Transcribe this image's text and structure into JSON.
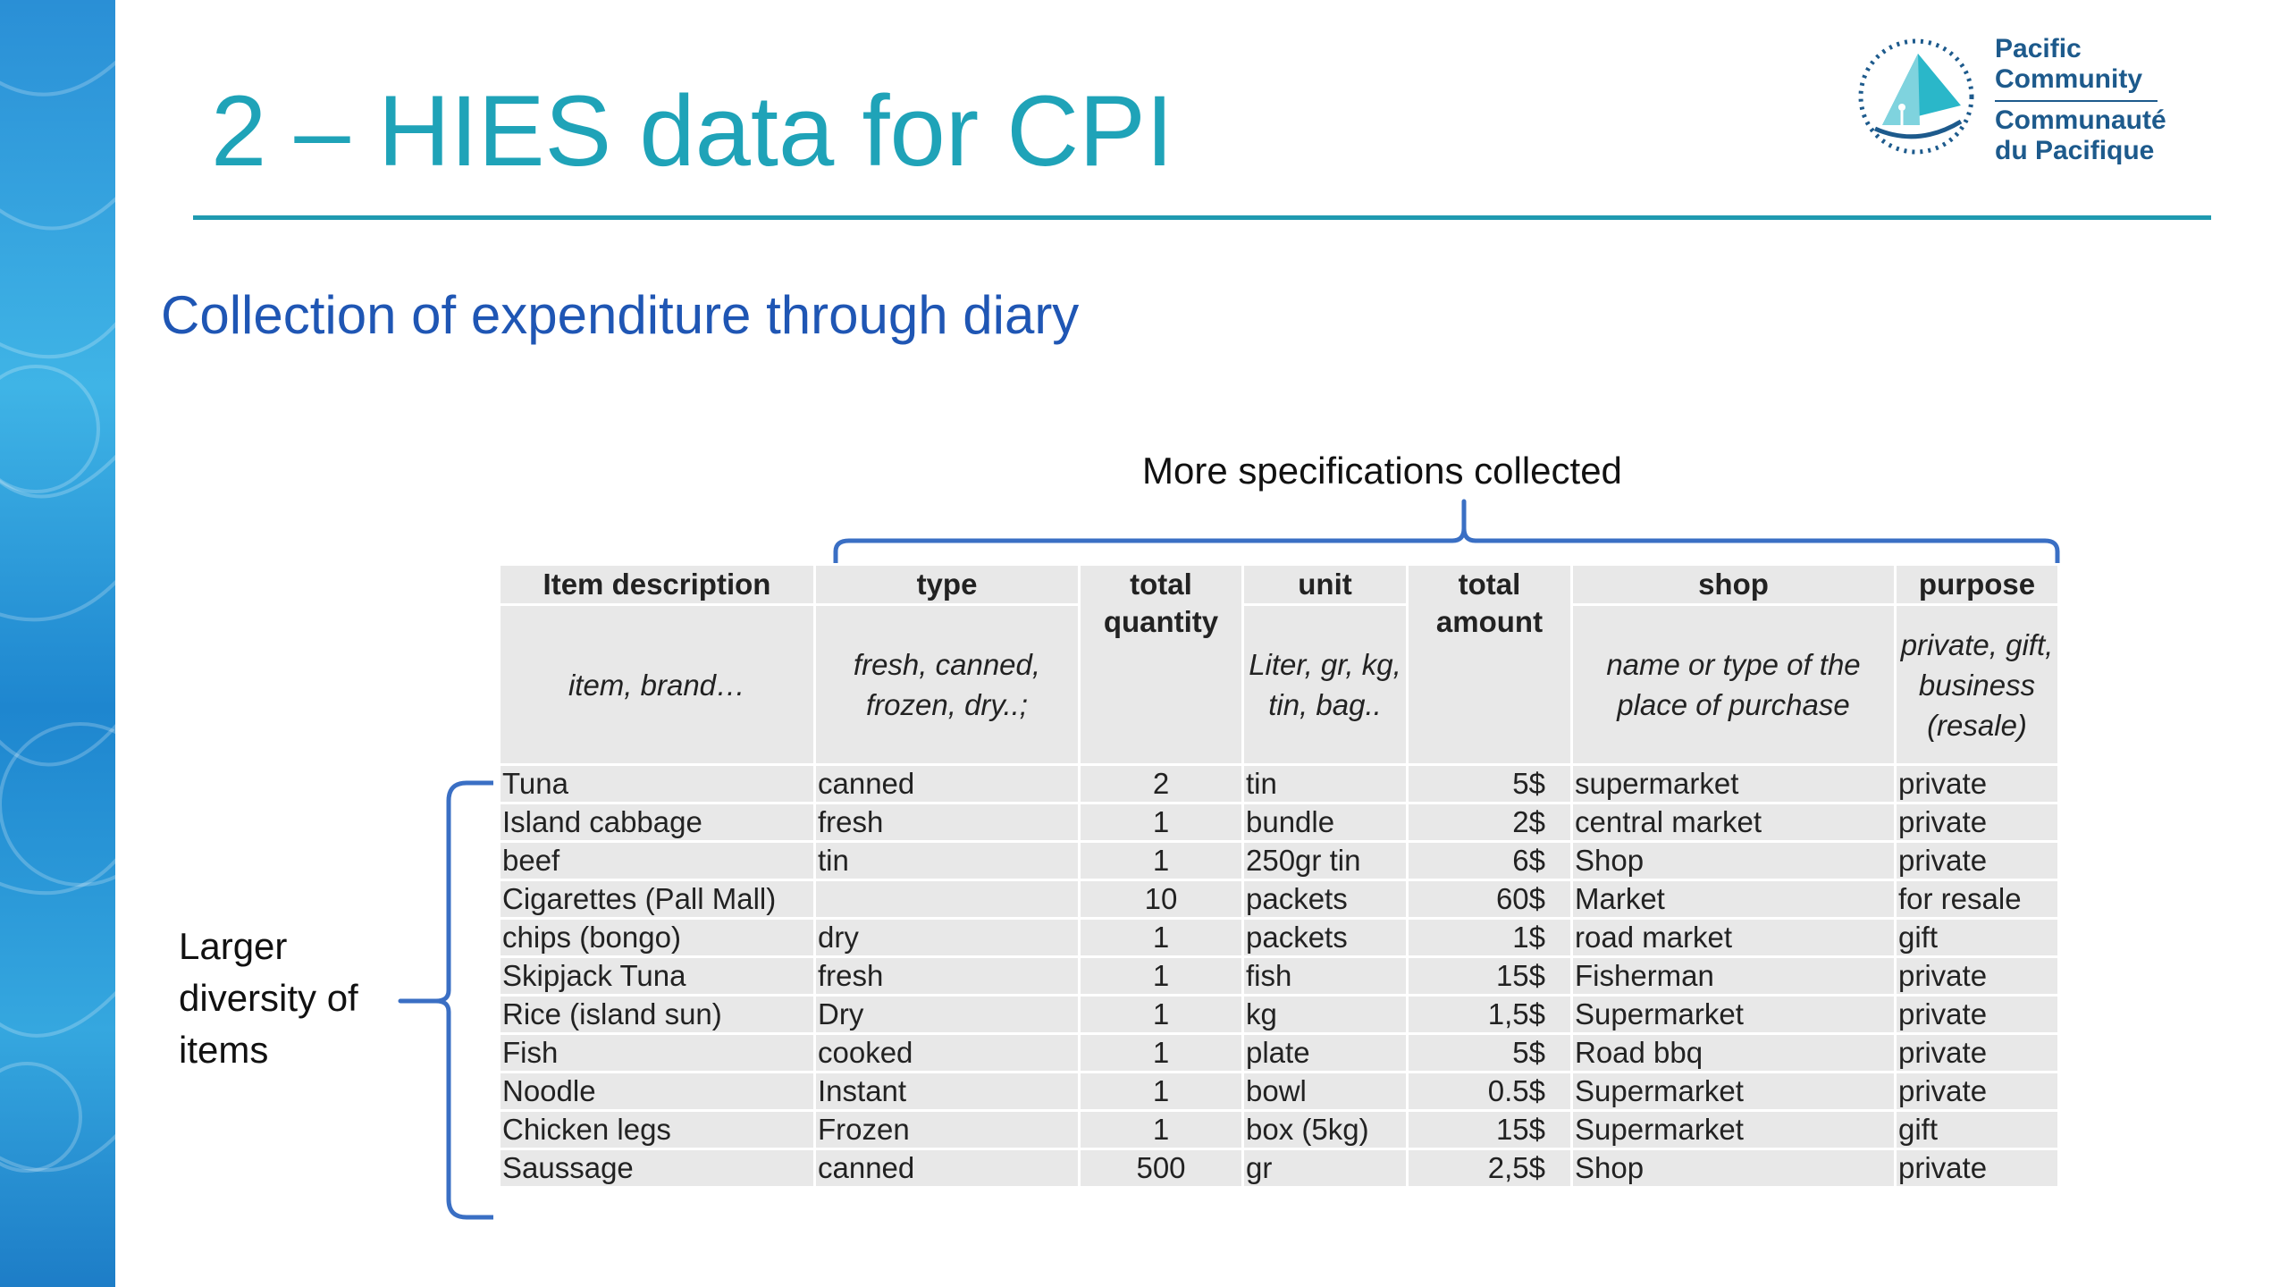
{
  "slide": {
    "title": "2 – HIES data for CPI",
    "subtitle": "Collection of expenditure through diary"
  },
  "logo": {
    "line1": "Pacific",
    "line2": "Community",
    "line3": "Communauté",
    "line4": "du Pacifique"
  },
  "annotations": {
    "spec_caption": "More specifications collected",
    "left_caption": "Larger diversity of items"
  },
  "table": {
    "headers": [
      {
        "label": "Item description",
        "hint": "item, brand…"
      },
      {
        "label": "type",
        "hint": "fresh, canned, frozen, dry..;"
      },
      {
        "label": "total quantity",
        "hint": ""
      },
      {
        "label": "unit",
        "hint": "Liter, gr, kg, tin, bag.."
      },
      {
        "label": "total amount",
        "hint": ""
      },
      {
        "label": "shop",
        "hint": "name or type of the place of purchase"
      },
      {
        "label": "purpose",
        "hint": "private, gift, business (resale)"
      }
    ],
    "rows": [
      [
        "Tuna",
        "canned",
        "2",
        "tin",
        "5$",
        "supermarket",
        "private"
      ],
      [
        "Island cabbage",
        "fresh",
        "1",
        "bundle",
        "2$",
        "central market",
        "private"
      ],
      [
        "beef",
        "tin",
        "1",
        "250gr tin",
        "6$",
        "Shop",
        "private"
      ],
      [
        "Cigarettes (Pall Mall)",
        "",
        "10",
        "packets",
        "60$",
        "Market",
        "for resale"
      ],
      [
        "chips (bongo)",
        "dry",
        "1",
        "packets",
        "1$",
        "road market",
        "gift"
      ],
      [
        "Skipjack Tuna",
        "fresh",
        "1",
        "fish",
        "15$",
        "Fisherman",
        "private"
      ],
      [
        "Rice (island sun)",
        "Dry",
        "1",
        "kg",
        "1,5$",
        "Supermarket",
        "private"
      ],
      [
        "Fish",
        "cooked",
        "1",
        "plate",
        "5$",
        "Road bbq",
        "private"
      ],
      [
        "Noodle",
        "Instant",
        "1",
        "bowl",
        "0.5$",
        "Supermarket",
        "private"
      ],
      [
        "Chicken legs",
        "Frozen",
        "1",
        "box (5kg)",
        "15$",
        "Supermarket",
        "gift"
      ],
      [
        "Saussage",
        "canned",
        "500",
        "gr",
        "2,5$",
        "Shop",
        "private"
      ]
    ]
  },
  "colors": {
    "title": "#1fa3b8",
    "subtitle": "#1f56b4",
    "brace": "#3a6fc4",
    "table_fill": "#e8e8e8",
    "band": "#2a8fd6"
  }
}
